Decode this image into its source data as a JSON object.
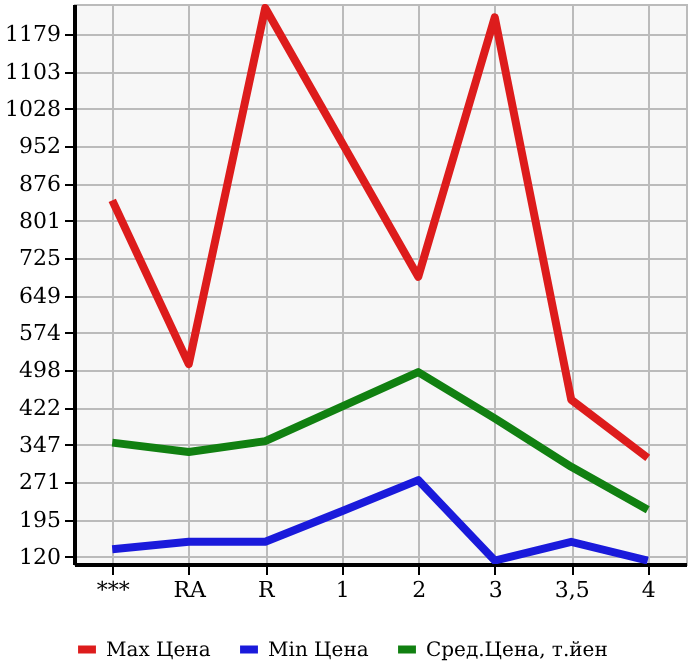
{
  "chart_data": {
    "type": "line",
    "categories": [
      "***",
      "RA",
      "R",
      "1",
      "2",
      "3",
      "3,5",
      "4"
    ],
    "series": [
      {
        "name": "Max Цена",
        "color": "#dd1c1c",
        "values": [
          842,
          510,
          1232,
          960,
          687,
          1213,
          438,
          320
        ]
      },
      {
        "name": "Min Цена",
        "color": "#1a1adb",
        "values": [
          135,
          150,
          150,
          212,
          275,
          112,
          150,
          112
        ]
      },
      {
        "name": "Сред.Цена, т.йен",
        "color": "#118011",
        "values": [
          351,
          332,
          354,
          424,
          494,
          400,
          302,
          215
        ]
      }
    ],
    "ylim": [
      105,
      1240
    ],
    "yticks": [
      120,
      195,
      271,
      347,
      422,
      498,
      574,
      649,
      725,
      801,
      876,
      952,
      1028,
      1103,
      1179
    ],
    "grid": true,
    "legend": "bottom",
    "marker": "none",
    "line_style": "solid"
  }
}
